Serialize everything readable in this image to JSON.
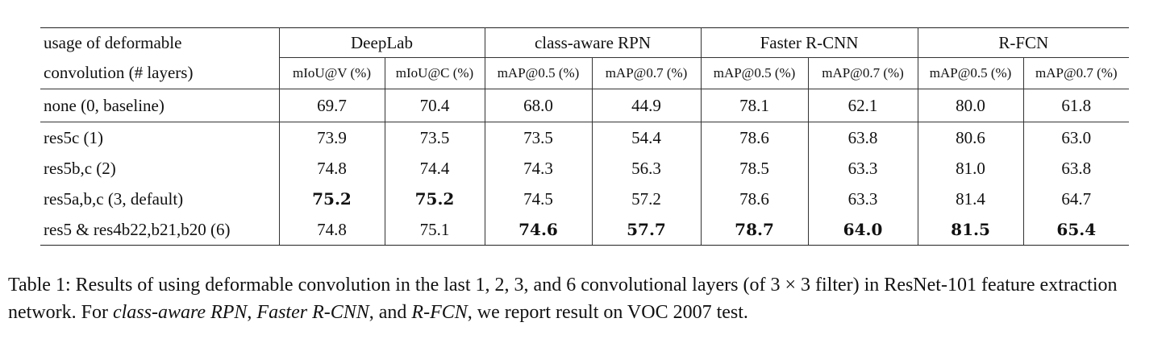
{
  "table": {
    "header_label_line1": "usage of deformable",
    "header_label_line2": "convolution (# layers)",
    "groups": [
      "DeepLab",
      "class-aware RPN",
      "Faster R-CNN",
      "R-FCN"
    ],
    "subheaders": [
      "mIoU@V (%)",
      "mIoU@C (%)",
      "mAP@0.5 (%)",
      "mAP@0.7 (%)",
      "mAP@0.5 (%)",
      "mAP@0.7 (%)",
      "mAP@0.5 (%)",
      "mAP@0.7 (%)"
    ],
    "rows": [
      {
        "label": "none (0, baseline)",
        "values": [
          "69.7",
          "70.4",
          "68.0",
          "44.9",
          "78.1",
          "62.1",
          "80.0",
          "61.8"
        ]
      },
      {
        "label": "res5c (1)",
        "values": [
          "73.9",
          "73.5",
          "73.5",
          "54.4",
          "78.6",
          "63.8",
          "80.6",
          "63.0"
        ]
      },
      {
        "label": "res5b,c (2)",
        "values": [
          "74.8",
          "74.4",
          "74.3",
          "56.3",
          "78.5",
          "63.3",
          "81.0",
          "63.8"
        ]
      },
      {
        "label": "res5a,b,c (3, default)",
        "values": [
          "75.2",
          "75.2",
          "74.5",
          "57.2",
          "78.6",
          "63.3",
          "81.4",
          "64.7"
        ]
      },
      {
        "label": "res5 & res4b22,b21,b20 (6)",
        "values": [
          "74.8",
          "75.1",
          "74.6",
          "57.7",
          "78.7",
          "64.0",
          "81.5",
          "65.4"
        ]
      }
    ]
  },
  "caption": {
    "part1": "Table 1: Results of using deformable convolution in the last 1, 2, 3, and 6 convolutional layers (of 3 × 3 filter) in ResNet-101 feature extraction network. For ",
    "term1": "class-aware RPN",
    "sep1": ", ",
    "term2": "Faster R-CNN",
    "sep2": ", and ",
    "term3": "R-FCN",
    "part2": ", we report result on VOC 2007 test."
  }
}
